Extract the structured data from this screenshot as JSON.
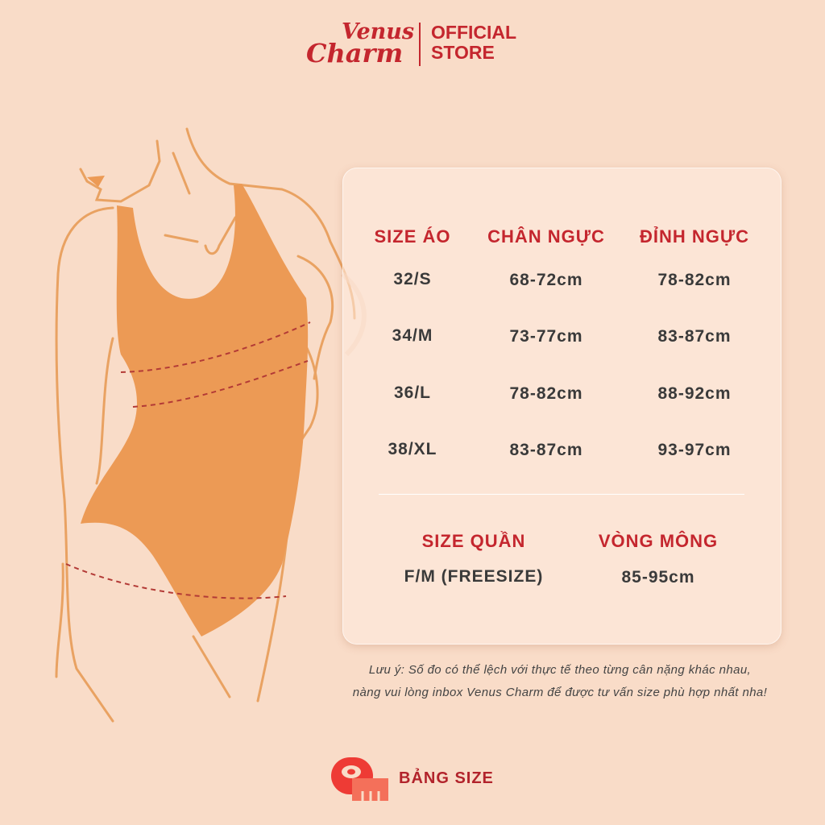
{
  "brand": {
    "logo_line1": "Venus",
    "logo_line2": "Charm",
    "store_line1": "OFFICIAL",
    "store_line2": "STORE"
  },
  "top_table": {
    "headers": [
      "SIZE ÁO",
      "CHÂN NGỰC",
      "ĐỈNH NGỰC"
    ],
    "rows": [
      [
        "32/S",
        "68-72cm",
        "78-82cm"
      ],
      [
        "34/M",
        "73-77cm",
        "83-87cm"
      ],
      [
        "36/L",
        "78-82cm",
        "88-92cm"
      ],
      [
        "38/XL",
        "83-87cm",
        "93-97cm"
      ]
    ]
  },
  "bottom_table": {
    "headers": [
      "SIZE QUẦN",
      "VÒNG MÔNG"
    ],
    "rows": [
      [
        "F/M (FREESIZE)",
        "85-95cm"
      ]
    ]
  },
  "note": {
    "line1": "Lưu ý: Số đo có thể lệch với thực tế theo từng cân nặng khác nhau,",
    "line2": "nàng vui lòng inbox Venus Charm để được tư vấn size phù hợp nhất nha!"
  },
  "footer": {
    "icon": "measuring-tape-icon",
    "label": "BẢNG SIZE"
  },
  "colors": {
    "background": "#f9dcc8",
    "accent": "#c4262e",
    "garment": "#ec9a55",
    "text": "#3a3a3a"
  }
}
